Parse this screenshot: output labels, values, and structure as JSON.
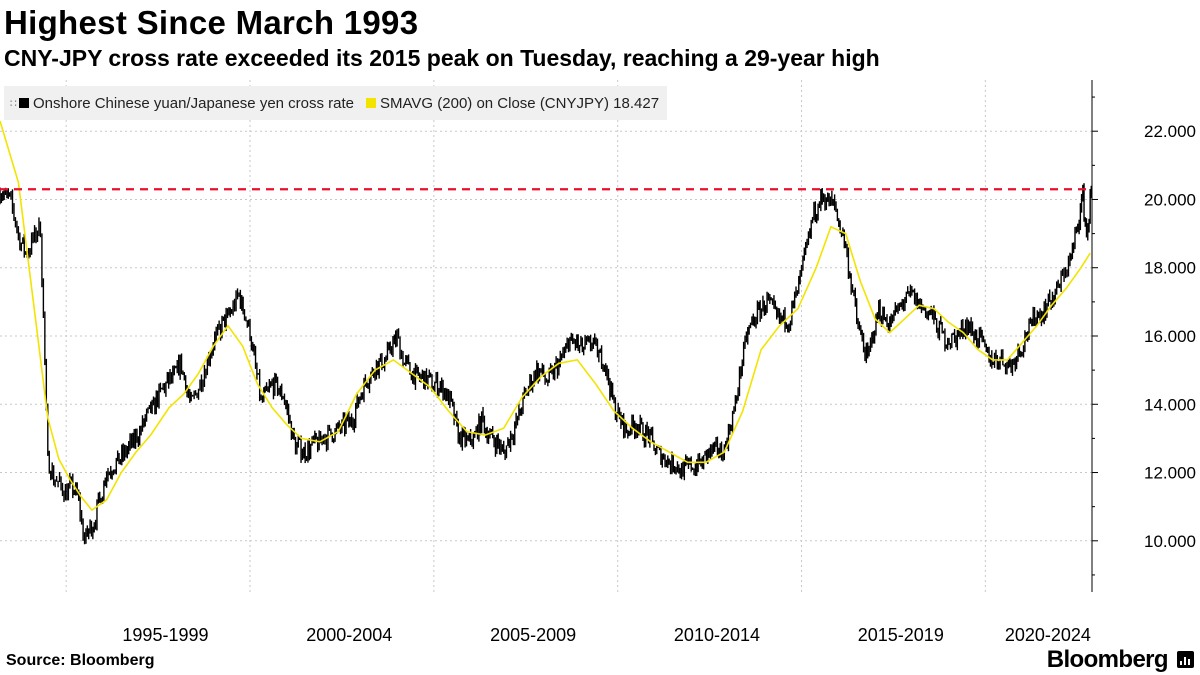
{
  "header": {
    "title": "Highest Since March 1993",
    "subtitle": "CNY-JPY cross rate exceeded its 2015 peak on Tuesday, reaching a 29-year high"
  },
  "legend": {
    "series1_label": "Onshore Chinese yuan/Japanese yen cross rate",
    "series2_label": "SMAVG (200)  on Close (CNYJPY) 18.427"
  },
  "footer": {
    "source": "Source: Bloomberg",
    "brand": "Bloomberg"
  },
  "colors": {
    "price": "#000000",
    "sma": "#f2e400",
    "reference": "#e8112d",
    "grid": "#c8c8c8",
    "legend_bg": "#f0f0f0"
  },
  "chart_data": {
    "type": "line",
    "title": "Highest Since March 1993",
    "subtitle": "CNY-JPY cross rate exceeded its 2015 peak on Tuesday, reaching a 29-year high",
    "xlabel": "",
    "ylabel": "",
    "x_range": [
      1993.0,
      2022.7
    ],
    "ylim": [
      8.5,
      23.5
    ],
    "y_ticks": [
      10,
      12,
      14,
      16,
      18,
      20,
      22
    ],
    "y_tick_labels": [
      "10.000",
      "12.000",
      "14.000",
      "16.000",
      "18.000",
      "20.000",
      "22.000"
    ],
    "x_period_labels": [
      "1995-1999",
      "2000-2004",
      "2005-2009",
      "2010-2014",
      "2015-2019",
      "2020-2024"
    ],
    "x_period_centers": [
      1997.5,
      2002.5,
      2007.5,
      2012.5,
      2017.5,
      2021.5
    ],
    "x_gridlines": [
      1994.8,
      1999.8,
      2004.8,
      2009.8,
      2014.8,
      2019.8
    ],
    "reference_line": {
      "value": 20.3,
      "style": "dashed"
    },
    "grid": true,
    "legend_position": "top-left",
    "series": [
      {
        "name": "Onshore Chinese yuan/Japanese yen cross rate",
        "style": "bars",
        "x": [
          1993.0,
          1993.3,
          1993.5,
          1993.7,
          1993.9,
          1994.1,
          1994.3,
          1994.5,
          1994.7,
          1994.9,
          1995.1,
          1995.3,
          1995.6,
          1995.9,
          1996.2,
          1996.5,
          1996.8,
          1997.1,
          1997.4,
          1997.7,
          1997.9,
          1998.2,
          1998.4,
          1998.6,
          1998.8,
          1999.0,
          1999.3,
          1999.5,
          1999.8,
          2000.1,
          2000.4,
          2000.7,
          2001.0,
          2001.3,
          2001.6,
          2001.8,
          2002.0,
          2002.3,
          2002.6,
          2002.9,
          2003.2,
          2003.5,
          2003.8,
          2004.0,
          2004.3,
          2004.6,
          2004.9,
          2005.2,
          2005.5,
          2005.8,
          2006.1,
          2006.4,
          2006.7,
          2007.0,
          2007.3,
          2007.6,
          2007.9,
          2008.2,
          2008.5,
          2008.8,
          2009.1,
          2009.4,
          2009.7,
          2010.0,
          2010.3,
          2010.6,
          2010.9,
          2011.2,
          2011.5,
          2011.8,
          2012.1,
          2012.4,
          2012.7,
          2013.0,
          2013.3,
          2013.6,
          2013.9,
          2014.2,
          2014.5,
          2014.8,
          2015.1,
          2015.4,
          2015.7,
          2016.0,
          2016.3,
          2016.6,
          2016.9,
          2017.2,
          2017.5,
          2017.8,
          2018.1,
          2018.4,
          2018.7,
          2019.0,
          2019.3,
          2019.6,
          2019.9,
          2020.2,
          2020.5,
          2020.8,
          2021.1,
          2021.4,
          2021.7,
          2021.9,
          2022.1,
          2022.2,
          2022.35,
          2022.45,
          2022.55,
          2022.62,
          2022.68
        ],
        "values": [
          20.3,
          19.9,
          18.9,
          18.4,
          18.8,
          19.2,
          12.4,
          11.8,
          11.5,
          11.6,
          11.4,
          10.0,
          10.7,
          12.0,
          12.3,
          12.7,
          13.2,
          13.8,
          14.4,
          14.8,
          15.2,
          14.0,
          14.5,
          15.2,
          15.8,
          16.2,
          16.8,
          17.2,
          16.1,
          14.1,
          14.6,
          14.3,
          12.9,
          12.6,
          12.9,
          13.0,
          13.1,
          13.3,
          13.6,
          14.6,
          15.0,
          15.4,
          16.0,
          15.2,
          14.8,
          14.7,
          14.6,
          14.2,
          13.0,
          12.9,
          13.5,
          13.0,
          12.6,
          13.3,
          14.3,
          15.0,
          14.7,
          15.2,
          15.9,
          15.6,
          15.8,
          15.3,
          14.0,
          13.2,
          13.4,
          13.1,
          12.6,
          12.3,
          12.1,
          12.2,
          12.3,
          12.6,
          12.7,
          14.0,
          16.0,
          16.7,
          17.0,
          16.4,
          16.5,
          17.8,
          19.5,
          20.1,
          19.8,
          18.6,
          16.5,
          15.3,
          16.8,
          16.4,
          16.9,
          17.2,
          16.8,
          16.5,
          15.9,
          15.9,
          16.4,
          15.9,
          15.4,
          15.3,
          15.1,
          15.7,
          16.5,
          16.8,
          17.2,
          17.8,
          18.2,
          18.6,
          19.5,
          20.1,
          18.9,
          19.6,
          20.3
        ]
      },
      {
        "name": "SMAVG (200)  on Close (CNYJPY) 18.427",
        "style": "line",
        "x": [
          1993.0,
          1993.5,
          1994.0,
          1994.3,
          1994.6,
          1994.9,
          1995.2,
          1995.5,
          1995.9,
          1996.3,
          1996.7,
          1997.1,
          1997.6,
          1998.0,
          1998.4,
          1998.8,
          1999.2,
          1999.6,
          2000.0,
          2000.4,
          2000.8,
          2001.2,
          2001.7,
          2002.2,
          2002.7,
          2003.2,
          2003.7,
          2004.2,
          2004.7,
          2005.2,
          2005.7,
          2006.2,
          2006.7,
          2007.2,
          2007.7,
          2008.2,
          2008.7,
          2009.2,
          2009.7,
          2010.2,
          2010.7,
          2011.2,
          2011.7,
          2012.2,
          2012.7,
          2013.2,
          2013.7,
          2014.2,
          2014.7,
          2015.2,
          2015.6,
          2016.0,
          2016.4,
          2016.8,
          2017.2,
          2017.6,
          2018.0,
          2018.4,
          2018.8,
          2019.2,
          2019.6,
          2020.0,
          2020.4,
          2020.8,
          2021.2,
          2021.6,
          2022.0,
          2022.4,
          2022.65
        ],
        "values": [
          22.3,
          20.5,
          16.2,
          13.6,
          12.4,
          11.8,
          11.3,
          10.9,
          11.2,
          12.0,
          12.6,
          13.1,
          13.9,
          14.3,
          14.9,
          15.7,
          16.3,
          15.7,
          14.6,
          13.9,
          13.4,
          13.0,
          12.9,
          13.2,
          14.3,
          15.0,
          15.3,
          14.9,
          14.5,
          13.8,
          13.2,
          13.1,
          13.3,
          14.2,
          14.8,
          15.2,
          15.3,
          14.6,
          13.8,
          13.3,
          12.9,
          12.6,
          12.3,
          12.3,
          12.6,
          13.8,
          15.6,
          16.3,
          16.8,
          18.0,
          19.2,
          19.0,
          17.6,
          16.5,
          16.1,
          16.5,
          16.9,
          16.8,
          16.4,
          16.1,
          15.6,
          15.3,
          15.3,
          15.8,
          16.3,
          16.9,
          17.4,
          18.0,
          18.43
        ]
      }
    ]
  }
}
